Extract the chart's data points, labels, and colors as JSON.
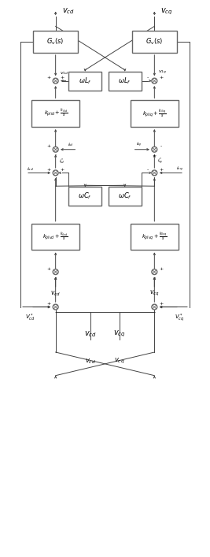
{
  "fig_width": 2.67,
  "fig_height": 7.07,
  "dpi": 100,
  "bg_color": "#ffffff",
  "box_ec": "#666666",
  "line_color": "#444444",
  "text_color": "#000000",
  "blw": 1.0,
  "llw": 0.7,
  "jr": 0.013
}
